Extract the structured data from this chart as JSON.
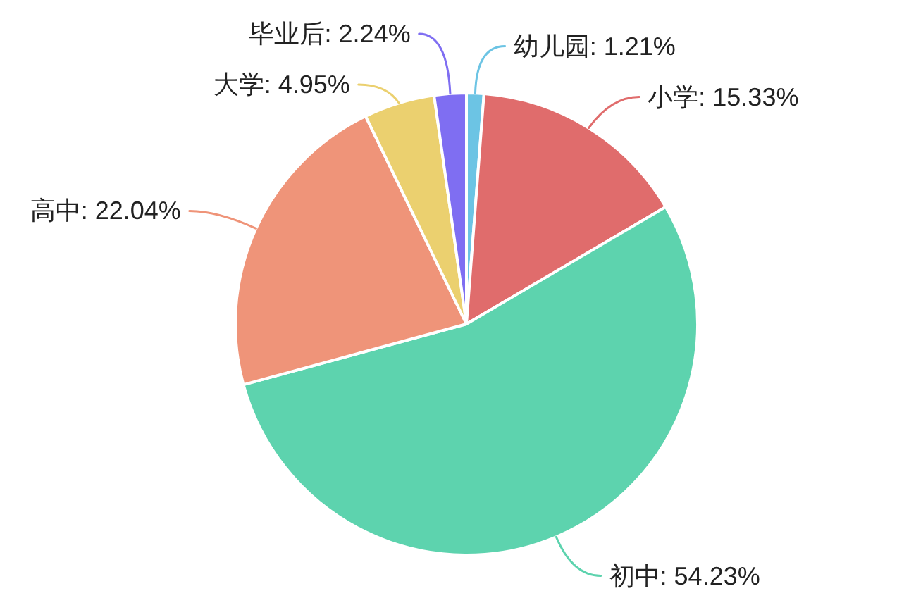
{
  "chart_data": {
    "type": "pie",
    "categories": [
      "幼儿园",
      "小学",
      "初中",
      "高中",
      "大学",
      "毕业后"
    ],
    "values": [
      1.21,
      15.33,
      54.23,
      22.04,
      4.95,
      2.24
    ],
    "colors": [
      "#6cc4e4",
      "#e06c6c",
      "#5dd3ae",
      "#ef9479",
      "#ebd06f",
      "#7f6ef2"
    ],
    "value_labels": [
      "1.21%",
      "15.33%",
      "54.23%",
      "22.04%",
      "4.95%",
      "2.24%"
    ]
  }
}
